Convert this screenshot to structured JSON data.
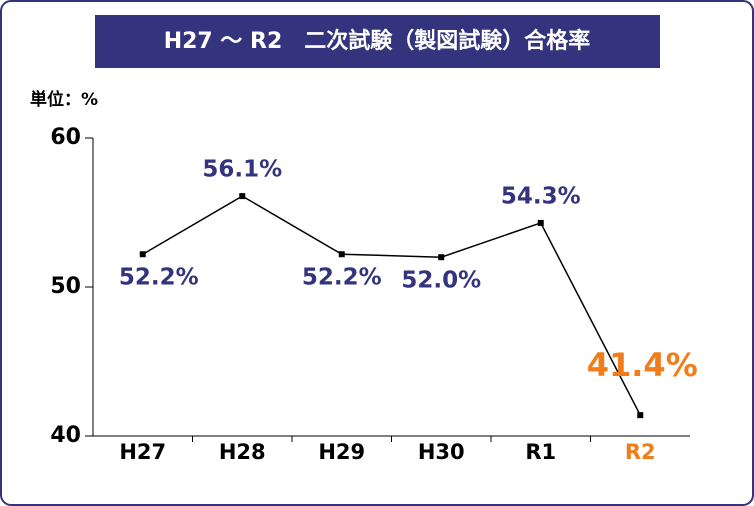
{
  "chart_data": {
    "type": "line",
    "title": "H27 〜 R2　二次試験（製図試験）合格率",
    "unit_label": "単位：%",
    "categories": [
      "H27",
      "H28",
      "H29",
      "H30",
      "R1",
      "R2"
    ],
    "series": [
      {
        "name": "合格率",
        "color": "#000000",
        "values": [
          52.2,
          56.1,
          52.2,
          52.0,
          54.3,
          41.4
        ],
        "value_labels": [
          "52.2%",
          "56.1%",
          "52.2%",
          "52.0%",
          "54.3%",
          "41.4%"
        ]
      }
    ],
    "label_color": "#34347e",
    "highlight": {
      "category": "R2",
      "color": "#f07d1a"
    },
    "ylim": [
      40,
      60
    ],
    "yticks": [
      40,
      50,
      60
    ]
  }
}
